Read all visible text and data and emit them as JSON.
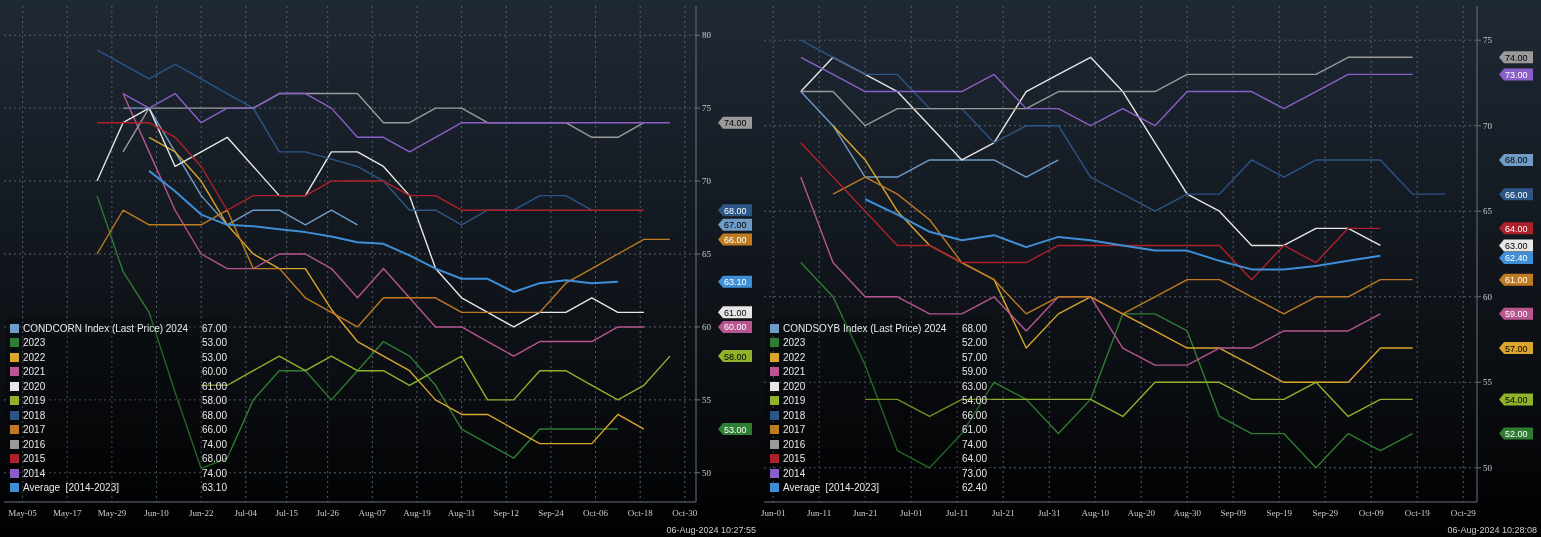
{
  "chart_data": [
    {
      "type": "line",
      "grid": true,
      "legend": "bottom left",
      "annotations": [
        "06-Aug-2024 10:27:55",
        "74.00",
        "68.00",
        "67.00",
        "66.00",
        "63.10",
        "61.00",
        "60.00",
        "58.00",
        "53.00"
      ],
      "x": [
        "--05-25",
        "--06-01",
        "--06-08",
        "--06-15",
        "--06-22",
        "--06-29",
        "--07-06",
        "--07-13",
        "--07-20",
        "--07-27",
        "--08-03",
        "--08-10",
        "--08-17",
        "--08-24",
        "--08-31",
        "--09-07",
        "--09-14",
        "--09-21",
        "--09-28",
        "--10-05",
        "--10-12",
        "--10-19",
        "--10-26"
      ],
      "xlim": [
        "--04-30",
        "--11-02"
      ],
      "xticks": [
        {
          "value": "--05-05",
          "label": "May-05"
        },
        {
          "value": "--05-17",
          "label": "May-17"
        },
        {
          "value": "--05-29",
          "label": "May-29"
        },
        {
          "value": "--06-10",
          "label": "Jun-10"
        },
        {
          "value": "--06-22",
          "label": "Jun-22"
        },
        {
          "value": "--07-04",
          "label": "Jul-04"
        },
        {
          "value": "--07-15",
          "label": "Jul-15"
        },
        {
          "value": "--07-26",
          "label": "Jul-26"
        },
        {
          "value": "--08-07",
          "label": "Aug-07"
        },
        {
          "value": "--08-19",
          "label": "Aug-19"
        },
        {
          "value": "--08-31",
          "label": "Aug-31"
        },
        {
          "value": "--09-12",
          "label": "Sep-12"
        },
        {
          "value": "--09-24",
          "label": "Sep-24"
        },
        {
          "value": "--10-06",
          "label": "Oct-06"
        },
        {
          "value": "--10-18",
          "label": "Oct-18"
        },
        {
          "value": "--10-30",
          "label": "Oct-30"
        }
      ],
      "ylim": [
        48,
        82
      ],
      "yticks": [
        50,
        55,
        60,
        65,
        70,
        75,
        80
      ],
      "series": [
        {
          "name": "CONDCORN Index (Last Price) 2024",
          "color": "#6f9cc6",
          "values": [
            null,
            75,
            75,
            72,
            69,
            67,
            68,
            68,
            67,
            68,
            67,
            null,
            null,
            null,
            null,
            null,
            null,
            null,
            null,
            null,
            null,
            null,
            null
          ]
        },
        {
          "name": "2023",
          "color": "#2f7d32",
          "values": [
            69,
            63.8,
            61,
            55.5,
            50.3,
            51,
            55,
            57,
            57,
            55,
            57,
            59,
            58,
            56,
            53,
            52,
            51,
            53,
            53,
            53,
            53,
            null,
            null
          ]
        },
        {
          "name": "2022",
          "color": "#d9a52b",
          "values": [
            null,
            null,
            73,
            72,
            70,
            67,
            65,
            64,
            64,
            61.2,
            59,
            58,
            57,
            55,
            54,
            54,
            53,
            52,
            52,
            52,
            54,
            53,
            null
          ]
        },
        {
          "name": "2021",
          "color": "#b8548f",
          "values": [
            null,
            76,
            72,
            68,
            65,
            64,
            64,
            65,
            65,
            64,
            62,
            64,
            62,
            60,
            60,
            59,
            58,
            59,
            59,
            59,
            60,
            60,
            null
          ]
        },
        {
          "name": "2020",
          "color": "#e6e6e6",
          "values": [
            70,
            74,
            75,
            71,
            72,
            73,
            71,
            69,
            69,
            72,
            72,
            71,
            69,
            64,
            62,
            61,
            60,
            61,
            61,
            62,
            61,
            61,
            null
          ]
        },
        {
          "name": "2019",
          "color": "#8fb22a",
          "values": [
            null,
            null,
            null,
            null,
            56,
            56,
            57,
            58,
            57,
            58,
            57,
            57,
            56,
            57,
            58,
            55,
            55,
            57,
            57,
            56,
            55,
            56,
            58
          ]
        },
        {
          "name": "2018",
          "color": "#2c5688",
          "values": [
            79,
            78,
            77,
            78,
            77,
            76,
            75,
            72,
            72,
            71.5,
            71,
            70,
            68,
            68,
            67,
            68,
            68,
            69,
            69,
            68,
            null,
            null,
            null
          ]
        },
        {
          "name": "2017",
          "color": "#c07a22",
          "values": [
            65,
            68,
            67,
            67,
            67,
            68,
            64,
            64,
            62,
            61,
            60,
            62,
            62,
            62,
            61,
            61,
            61,
            61,
            63,
            64,
            65,
            66,
            66
          ]
        },
        {
          "name": "2016",
          "color": "#9a9a9a",
          "values": [
            null,
            72,
            75,
            75,
            75,
            75,
            75,
            76,
            76,
            76,
            76,
            74,
            74,
            75,
            75,
            74,
            74,
            74,
            74,
            73,
            73,
            74,
            null
          ]
        },
        {
          "name": "2015",
          "color": "#b0202a",
          "values": [
            74,
            74,
            74,
            73,
            71,
            68,
            69,
            69,
            69,
            70,
            70,
            70,
            69,
            69,
            68,
            68,
            68,
            68,
            68,
            68,
            68,
            68,
            null
          ]
        },
        {
          "name": "2014",
          "color": "#8a60c8",
          "values": [
            null,
            76,
            75,
            76,
            74,
            75,
            75,
            76,
            76,
            75,
            73,
            73,
            72,
            73,
            74,
            74,
            74,
            74,
            74,
            74,
            74,
            74,
            74
          ]
        },
        {
          "name": "Average  [2014-2023]",
          "color": "#3f8fd8",
          "values": [
            null,
            null,
            70.7,
            69.3,
            67.7,
            67,
            66.9,
            66.7,
            66.5,
            66.2,
            65.8,
            65.7,
            64.9,
            64,
            63.3,
            63.3,
            62.4,
            63,
            63.2,
            63,
            63.1,
            null,
            null
          ]
        }
      ]
    },
    {
      "type": "line",
      "grid": true,
      "legend": "bottom left",
      "annotations": [
        "06-Aug-2024 10:28:08",
        "74.00",
        "73.00",
        "68.00",
        "66.00",
        "64.00",
        "63.00",
        "62.40",
        "61.00",
        "59.00",
        "57.00",
        "54.00",
        "52.00"
      ],
      "x": [
        "--06-07",
        "--06-14",
        "--06-21",
        "--06-28",
        "--07-05",
        "--07-12",
        "--07-19",
        "--07-26",
        "--08-02",
        "--08-09",
        "--08-16",
        "--08-23",
        "--08-30",
        "--09-06",
        "--09-13",
        "--09-20",
        "--09-27",
        "--10-04",
        "--10-11",
        "--10-18",
        "--10-25"
      ],
      "xlim": [
        "--05-30",
        "--11-01"
      ],
      "xticks": [
        {
          "value": "--06-01",
          "label": "Jun-01"
        },
        {
          "value": "--06-11",
          "label": "Jun-11"
        },
        {
          "value": "--06-21",
          "label": "Jun-21"
        },
        {
          "value": "--07-01",
          "label": "Jul-01"
        },
        {
          "value": "--07-11",
          "label": "Jul-11"
        },
        {
          "value": "--07-21",
          "label": "Jul-21"
        },
        {
          "value": "--07-31",
          "label": "Jul-31"
        },
        {
          "value": "--08-10",
          "label": "Aug-10"
        },
        {
          "value": "--08-20",
          "label": "Aug-20"
        },
        {
          "value": "--08-30",
          "label": "Aug-30"
        },
        {
          "value": "--09-09",
          "label": "Sep-09"
        },
        {
          "value": "--09-19",
          "label": "Sep-19"
        },
        {
          "value": "--09-29",
          "label": "Sep-29"
        },
        {
          "value": "--10-09",
          "label": "Oct-09"
        },
        {
          "value": "--10-19",
          "label": "Oct-19"
        },
        {
          "value": "--10-29",
          "label": "Oct-29"
        }
      ],
      "ylim": [
        48,
        77
      ],
      "yticks": [
        50,
        55,
        60,
        65,
        70,
        75
      ],
      "series": [
        {
          "name": "CONDSOYB Index (Last Price) 2024",
          "color": "#6f9cc6",
          "values": [
            72,
            70,
            67,
            67,
            68,
            68,
            68,
            67,
            68,
            null,
            null,
            null,
            null,
            null,
            null,
            null,
            null,
            null,
            null,
            null,
            null
          ]
        },
        {
          "name": "2023",
          "color": "#2f7d32",
          "values": [
            62,
            60,
            56,
            51,
            50,
            52,
            55,
            54,
            52,
            54,
            59,
            59,
            58,
            53,
            52,
            52,
            50,
            52,
            51,
            52,
            null
          ]
        },
        {
          "name": "2022",
          "color": "#d9a52b",
          "values": [
            null,
            70,
            68,
            65,
            63,
            62,
            61,
            57,
            59,
            60,
            59,
            58,
            57,
            57,
            56,
            55,
            55,
            55,
            57,
            57,
            null
          ]
        },
        {
          "name": "2021",
          "color": "#b8548f",
          "values": [
            67,
            62,
            60,
            60,
            59,
            59,
            60,
            58,
            60,
            60,
            57,
            56,
            56,
            57,
            57,
            58,
            58,
            58,
            59,
            null,
            null
          ]
        },
        {
          "name": "2020",
          "color": "#e6e6e6",
          "values": [
            72,
            74,
            73,
            72,
            70,
            68,
            69,
            72,
            73,
            74,
            72,
            69,
            66,
            65,
            63,
            63,
            64,
            64,
            63,
            null,
            null
          ]
        },
        {
          "name": "2019",
          "color": "#8fb22a",
          "values": [
            null,
            null,
            54,
            54,
            53,
            54,
            54,
            54,
            54,
            54,
            53,
            55,
            55,
            55,
            54,
            54,
            55,
            53,
            54,
            54,
            null
          ]
        },
        {
          "name": "2018",
          "color": "#2c5688",
          "values": [
            75,
            74,
            73,
            73,
            71,
            71,
            69,
            70,
            70,
            67,
            66,
            65,
            66,
            66,
            68,
            67,
            68,
            68,
            68,
            66,
            66
          ]
        },
        {
          "name": "2017",
          "color": "#c07a22",
          "values": [
            null,
            66,
            67,
            66,
            64.5,
            62,
            61,
            59,
            60,
            60,
            59,
            60,
            61,
            61,
            60,
            59,
            60,
            60,
            61,
            61,
            null
          ]
        },
        {
          "name": "2016",
          "color": "#9a9a9a",
          "values": [
            72,
            72,
            70,
            71,
            71,
            71,
            71,
            71,
            72,
            72,
            72,
            72,
            73,
            73,
            73,
            73,
            73,
            74,
            74,
            74,
            null
          ]
        },
        {
          "name": "2015",
          "color": "#b0202a",
          "values": [
            69,
            67,
            65,
            63,
            63,
            62,
            62,
            62,
            63,
            63,
            63,
            63,
            63,
            63,
            61,
            63,
            62,
            64,
            64,
            null,
            null
          ]
        },
        {
          "name": "2014",
          "color": "#8a60c8",
          "values": [
            74,
            73,
            72,
            72,
            72,
            72,
            73,
            71,
            71,
            70,
            71,
            70,
            72,
            72,
            72,
            71,
            72,
            73,
            73,
            73,
            null
          ]
        },
        {
          "name": "Average  [2014-2023]",
          "color": "#3f8fd8",
          "values": [
            null,
            null,
            65.7,
            64.8,
            63.8,
            63.3,
            63.6,
            62.9,
            63.5,
            63.3,
            63,
            62.7,
            62.7,
            62.1,
            61.6,
            61.6,
            61.8,
            62.1,
            62.4,
            null,
            null
          ]
        }
      ]
    }
  ]
}
